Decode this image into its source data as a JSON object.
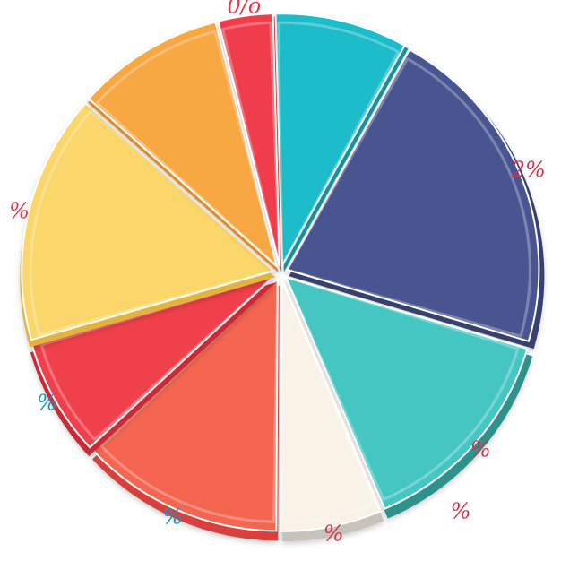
{
  "chart_data": {
    "type": "pie",
    "title": "",
    "slices": [
      {
        "value": 8.5,
        "color": "#1fbcca",
        "side": "#15939f",
        "label": "",
        "label_color": "#e8374a"
      },
      {
        "value": 21.5,
        "color": "#4a5590",
        "side": "#38406f",
        "label": "2%",
        "label_color": "#d83049"
      },
      {
        "value": 14.0,
        "color": "#45c6c2",
        "side": "#2f918c",
        "label": "%",
        "label_color": "#d83049"
      },
      {
        "value": 6.5,
        "color": "#f8f3e6",
        "side": "#c6c2bc",
        "label": "%",
        "label_color": "#d83049"
      },
      {
        "value": 13.0,
        "color": "#f4664f",
        "side": "#d9413c",
        "label": "%",
        "label_color": "#1e91be"
      },
      {
        "value": 7.5,
        "color": "#f0404c",
        "side": "#c92b39",
        "label": "%",
        "label_color": "#1e91be"
      },
      {
        "value": 16.0,
        "color": "#fbd66a",
        "side": "#e3b43c",
        "label": "%",
        "label_color": "#e8374a"
      },
      {
        "value": 9.5,
        "color": "#f8a842",
        "side": "#e08a2b",
        "label": "",
        "label_color": "#e8374a"
      },
      {
        "value": 3.5,
        "color": "#ef3e4c",
        "side": "#c42a37",
        "label": "0/o",
        "label_color": "#e8374a"
      }
    ]
  },
  "extra_labels": [
    {
      "text": "%",
      "color": "#d83049"
    }
  ]
}
